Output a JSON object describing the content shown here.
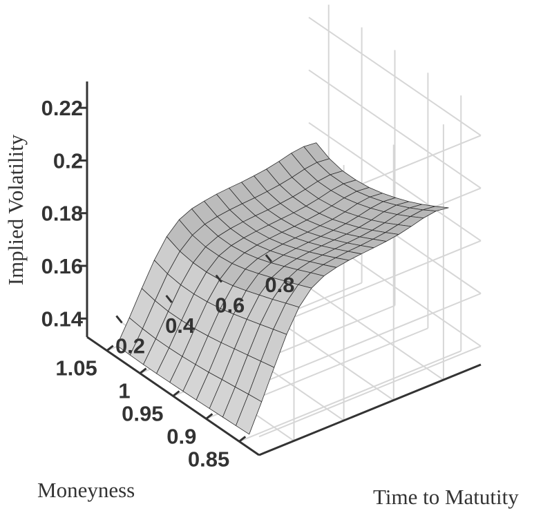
{
  "chart_data": {
    "type": "surface",
    "zlabel": "Implied Volatility",
    "xlabel": "Moneyness",
    "ylabel": "Time to Matutity",
    "z_ticks": [
      "0.14",
      "0.16",
      "0.18",
      "0.2",
      "0.22"
    ],
    "moneyness_ticks": [
      "1.05",
      "1",
      "0.95",
      "0.9",
      "0.85"
    ],
    "maturity_ticks": [
      "0.2",
      "0.4",
      "0.6",
      "0.8"
    ],
    "moneyness_range": [
      0.82,
      1.08
    ],
    "maturity_range": [
      0.06,
      0.95
    ],
    "zlim": [
      0.133,
      0.23
    ],
    "grid": true,
    "surface": {
      "moneyness": [
        0.85,
        0.87,
        0.89,
        0.91,
        0.93,
        0.95,
        0.97,
        0.99,
        1.01,
        1.03,
        1.05
      ],
      "maturity": [
        0.1,
        0.15,
        0.2,
        0.25,
        0.3,
        0.35,
        0.4,
        0.45,
        0.5,
        0.55,
        0.6,
        0.65,
        0.7,
        0.75,
        0.8,
        0.85,
        0.9
      ],
      "iv": [
        [
          0.1342,
          0.1446,
          0.1557,
          0.1663,
          0.1747,
          0.18,
          0.1827,
          0.184,
          0.1848,
          0.1853,
          0.1857,
          0.1862,
          0.1869,
          0.188,
          0.1893,
          0.19,
          0.1893
        ],
        [
          0.134,
          0.144,
          0.1546,
          0.1648,
          0.1728,
          0.1779,
          0.1805,
          0.1816,
          0.1823,
          0.1828,
          0.1831,
          0.1836,
          0.1842,
          0.1852,
          0.1864,
          0.187,
          0.1864
        ],
        [
          0.1338,
          0.1433,
          0.1535,
          0.1632,
          0.1708,
          0.1758,
          0.1782,
          0.1793,
          0.1799,
          0.1803,
          0.1806,
          0.181,
          0.1816,
          0.1825,
          0.1837,
          0.1843,
          0.1837
        ],
        [
          0.1336,
          0.1427,
          0.1524,
          0.1617,
          0.169,
          0.1737,
          0.176,
          0.177,
          0.1776,
          0.178,
          0.1783,
          0.1786,
          0.1792,
          0.1801,
          0.1813,
          0.1819,
          0.1813
        ],
        [
          0.1334,
          0.142,
          0.1513,
          0.1602,
          0.1672,
          0.1717,
          0.1739,
          0.1749,
          0.1755,
          0.1759,
          0.1762,
          0.1766,
          0.1772,
          0.1781,
          0.1792,
          0.1798,
          0.1793
        ],
        [
          0.1333,
          0.1415,
          0.1504,
          0.1589,
          0.1656,
          0.17,
          0.1721,
          0.1731,
          0.1737,
          0.1741,
          0.1744,
          0.1749,
          0.1754,
          0.1763,
          0.1775,
          0.1781,
          0.1776
        ],
        [
          0.1332,
          0.1411,
          0.1497,
          0.158,
          0.1645,
          0.1687,
          0.1708,
          0.1718,
          0.1724,
          0.1728,
          0.1731,
          0.1736,
          0.1742,
          0.1751,
          0.1762,
          0.1768,
          0.1763
        ],
        [
          0.1331,
          0.1409,
          0.1494,
          0.1575,
          0.1639,
          0.1681,
          0.1701,
          0.1711,
          0.1717,
          0.1721,
          0.1725,
          0.1729,
          0.1735,
          0.1744,
          0.1756,
          0.1762,
          0.1757
        ],
        [
          0.1331,
          0.1409,
          0.1494,
          0.1575,
          0.164,
          0.1681,
          0.1702,
          0.1712,
          0.1718,
          0.1722,
          0.1725,
          0.173,
          0.1736,
          0.1745,
          0.1756,
          0.1762,
          0.1757
        ],
        [
          0.1332,
          0.1413,
          0.15,
          0.1583,
          0.1649,
          0.1691,
          0.1713,
          0.1723,
          0.1729,
          0.1733,
          0.1736,
          0.1741,
          0.1747,
          0.1756,
          0.1768,
          0.1774,
          0.1769
        ],
        [
          0.1334,
          0.142,
          0.1512,
          0.16,
          0.167,
          0.1715,
          0.1737,
          0.1747,
          0.1754,
          0.1758,
          0.1761,
          0.1766,
          0.1772,
          0.1782,
          0.1794,
          0.18,
          0.1795
        ]
      ]
    }
  }
}
